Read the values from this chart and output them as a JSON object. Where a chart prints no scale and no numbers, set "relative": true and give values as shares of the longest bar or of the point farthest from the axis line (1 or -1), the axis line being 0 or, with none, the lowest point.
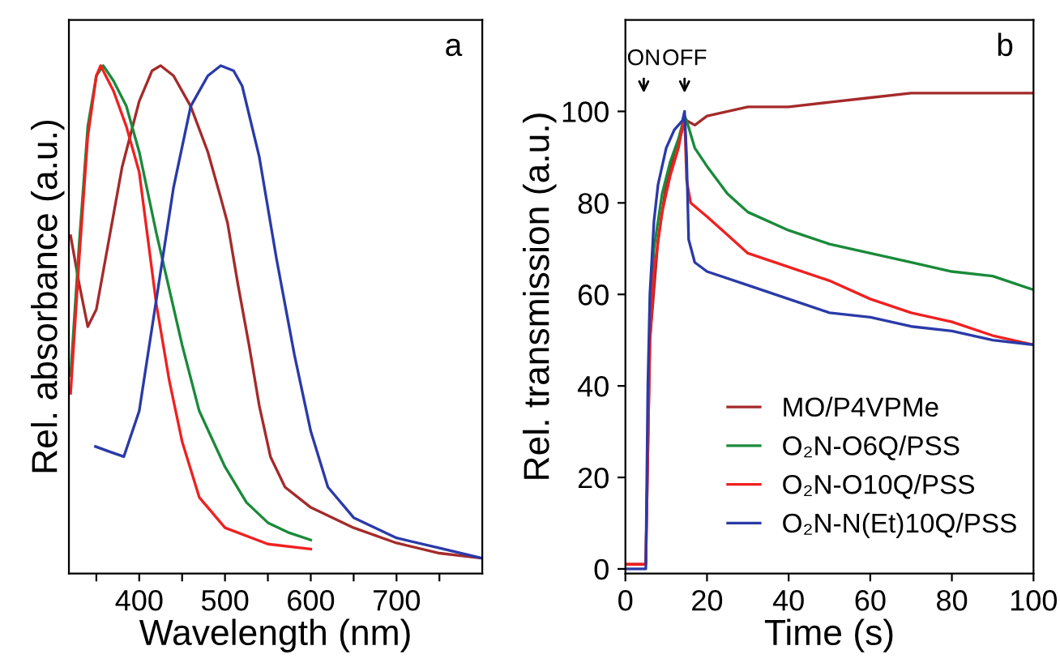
{
  "chart_data": [
    {
      "type": "line",
      "relative": true,
      "xlabel": "Wavelength (nm)",
      "ylabel": "Rel. absorbance (a.u.)",
      "annotations": [
        "a"
      ],
      "xlim": [
        318,
        800
      ],
      "xticks": [
        {
          "value": 350,
          "label": null
        },
        400,
        {
          "value": 450,
          "label": null
        },
        500,
        {
          "value": 550,
          "label": null
        },
        600,
        {
          "value": 650,
          "label": null
        },
        700,
        {
          "value": 750,
          "label": null
        }
      ],
      "tick_labels": "x",
      "grid": false,
      "legend": false,
      "line_style": "solid",
      "marker": "none",
      "series": [
        {
          "color": "#a52a2a",
          "x": [
            320,
            330,
            340,
            350,
            365,
            380,
            400,
            415,
            425,
            440,
            460,
            480,
            495,
            503,
            515,
            528,
            540,
            553,
            570,
            600,
            650,
            700,
            750,
            800
          ],
          "values": [
            0.665,
            0.57,
            0.486,
            0.52,
            0.66,
            0.8,
            0.93,
            0.99,
            1.0,
            0.98,
            0.92,
            0.83,
            0.74,
            0.69,
            0.57,
            0.45,
            0.33,
            0.23,
            0.17,
            0.13,
            0.09,
            0.06,
            0.04,
            0.03
          ]
        },
        {
          "color": "#1a8a3a",
          "x": [
            320,
            330,
            340,
            350,
            358,
            370,
            385,
            400,
            420,
            435,
            450,
            470,
            500,
            525,
            550,
            575,
            600
          ],
          "values": [
            0.39,
            0.65,
            0.88,
            0.98,
            1.0,
            0.97,
            0.92,
            0.83,
            0.67,
            0.56,
            0.45,
            0.32,
            0.21,
            0.14,
            0.1,
            0.08,
            0.066
          ]
        },
        {
          "color": "#f02020",
          "x": [
            320,
            330,
            340,
            350,
            355,
            370,
            385,
            400,
            410,
            420,
            435,
            450,
            470,
            500,
            550,
            600
          ],
          "values": [
            0.355,
            0.62,
            0.86,
            0.98,
            1.0,
            0.95,
            0.88,
            0.79,
            0.66,
            0.53,
            0.38,
            0.26,
            0.15,
            0.09,
            0.058,
            0.048
          ]
        },
        {
          "color": "#2a3aa8",
          "x": [
            349,
            365,
            382,
            400,
            420,
            440,
            460,
            480,
            495,
            510,
            520,
            540,
            560,
            581,
            600,
            620,
            650,
            700,
            750,
            800
          ],
          "values": [
            0.25,
            0.24,
            0.23,
            0.32,
            0.54,
            0.76,
            0.92,
            0.98,
            1.0,
            0.99,
            0.96,
            0.82,
            0.62,
            0.43,
            0.28,
            0.17,
            0.11,
            0.07,
            0.05,
            0.03
          ]
        }
      ]
    },
    {
      "type": "line",
      "xlabel": "Time (s)",
      "ylabel": "Rel. transmission (a.u.)",
      "annotations": [
        "b",
        "ON",
        "OFF"
      ],
      "xlim": [
        0,
        100
      ],
      "ylim": [
        -1,
        120
      ],
      "xticks": [
        0,
        20,
        40,
        60,
        80,
        100
      ],
      "yticks": [
        0,
        20,
        40,
        60,
        80,
        100
      ],
      "grid": false,
      "legend": "lower right",
      "line_style": "solid",
      "marker": "none",
      "series": [
        {
          "name": "MO/P4VPMe",
          "color": "#a52a2a",
          "x": [
            0,
            4.5,
            5,
            6,
            8,
            10,
            12,
            14,
            15,
            17,
            20,
            30,
            40,
            50,
            60,
            70,
            80,
            90,
            100
          ],
          "values": [
            1,
            1,
            1,
            50,
            72,
            84,
            91,
            96,
            98,
            97,
            99,
            101,
            101,
            102,
            103,
            104,
            104,
            104,
            104
          ]
        },
        {
          "name": "O₂N-O6Q/PSS",
          "color": "#1a8a3a",
          "x": [
            6,
            7,
            9,
            11,
            13,
            14.5,
            15,
            17,
            20,
            25,
            30,
            40,
            50,
            60,
            70,
            80,
            90,
            100
          ],
          "values": [
            55,
            70,
            82,
            89,
            94,
            99,
            98,
            92,
            88,
            82,
            78,
            74,
            71,
            69,
            67,
            65,
            64,
            61
          ]
        },
        {
          "name": "O₂N-O10Q/PSS",
          "color": "#f02020",
          "x": [
            0,
            4.5,
            5,
            6,
            7,
            9,
            11,
            13,
            14.5,
            15,
            16,
            20,
            25,
            30,
            40,
            50,
            60,
            70,
            80,
            90,
            100
          ],
          "values": [
            1,
            1,
            1,
            50,
            65,
            78,
            86,
            92,
            99,
            85,
            80,
            77,
            73,
            69,
            66,
            63,
            59,
            56,
            54,
            51,
            49
          ]
        },
        {
          "name": "O₂N-N(Et)10Q/PSS",
          "color": "#2a3aa8",
          "x": [
            0,
            5,
            5.5,
            6,
            7,
            8,
            10,
            12,
            14,
            14.5,
            15,
            15.5,
            17,
            20,
            30,
            40,
            50,
            60,
            70,
            80,
            90,
            100
          ],
          "values": [
            0,
            0,
            40,
            60,
            76,
            84,
            92,
            96,
            98,
            100,
            90,
            72,
            67,
            65,
            62,
            59,
            56,
            55,
            53,
            52,
            50,
            49
          ]
        }
      ]
    }
  ]
}
